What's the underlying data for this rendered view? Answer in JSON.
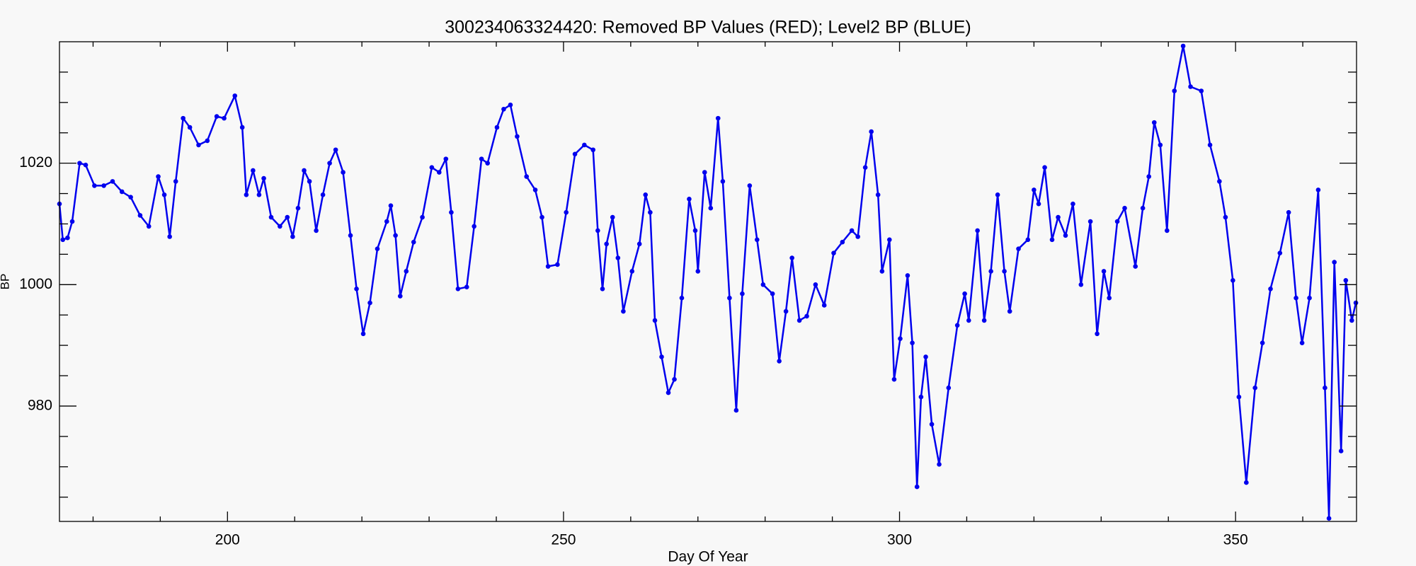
{
  "chart_data": {
    "type": "scatter",
    "title": "300234063324420: Removed BP Values (RED); Level2 BP (BLUE)",
    "x_label": "Day Of Year",
    "y_label": "BP",
    "xlim": [
      175,
      368
    ],
    "ylim": [
      961,
      1040
    ],
    "xticks": [
      200,
      250,
      300,
      350
    ],
    "yticks": [
      980,
      1000,
      1020
    ],
    "x_minor_ticks": [
      180,
      190,
      210,
      220,
      230,
      240,
      260,
      270,
      280,
      290,
      310,
      320,
      330,
      340,
      360
    ],
    "y_minor_ticks": [
      965,
      970,
      975,
      985,
      990,
      995,
      1005,
      1010,
      1015,
      1025,
      1030,
      1035
    ],
    "grid": false,
    "series": [
      {
        "name": "Level2 BP (BLUE)",
        "color": "#0000ee",
        "x": [
          175.0,
          175.5,
          176.2,
          176.9,
          178.0,
          178.9,
          180.2,
          181.6,
          182.9,
          184.3,
          185.6,
          187.0,
          188.3,
          189.7,
          190.6,
          191.4,
          192.3,
          193.4,
          194.4,
          195.7,
          197.0,
          198.4,
          199.5,
          201.1,
          202.2,
          202.8,
          203.8,
          204.7,
          205.4,
          206.5,
          207.8,
          208.9,
          209.7,
          210.5,
          211.4,
          212.2,
          213.2,
          214.2,
          215.2,
          216.1,
          217.2,
          218.3,
          219.2,
          220.2,
          221.2,
          222.3,
          223.7,
          224.3,
          225.0,
          225.7,
          226.6,
          227.7,
          229.0,
          230.4,
          231.5,
          232.5,
          233.3,
          234.3,
          235.6,
          236.7,
          237.8,
          238.7,
          240.1,
          241.1,
          242.1,
          243.1,
          244.5,
          245.8,
          246.8,
          247.7,
          249.1,
          250.4,
          251.7,
          253.1,
          254.4,
          255.1,
          255.8,
          256.4,
          257.3,
          258.1,
          258.9,
          260.2,
          261.3,
          262.2,
          262.9,
          263.6,
          264.6,
          265.6,
          266.5,
          267.6,
          268.7,
          269.6,
          270.0,
          271.0,
          271.9,
          273.0,
          273.7,
          274.7,
          275.7,
          276.6,
          277.7,
          278.8,
          279.7,
          281.1,
          282.1,
          283.1,
          284.0,
          285.1,
          286.2,
          287.5,
          288.8,
          290.2,
          291.5,
          292.9,
          293.8,
          294.9,
          295.8,
          296.8,
          297.4,
          298.5,
          299.2,
          300.1,
          301.2,
          301.9,
          302.6,
          303.2,
          303.9,
          304.8,
          305.9,
          307.3,
          308.6,
          309.7,
          310.3,
          311.6,
          312.6,
          313.6,
          314.6,
          315.6,
          316.4,
          317.7,
          319.1,
          320.0,
          320.7,
          321.6,
          322.7,
          323.6,
          324.7,
          325.8,
          327.0,
          328.4,
          329.4,
          330.4,
          331.2,
          332.4,
          333.5,
          335.1,
          336.2,
          337.1,
          337.9,
          338.8,
          339.8,
          340.9,
          342.2,
          343.3,
          344.9,
          346.2,
          347.6,
          348.5,
          349.6,
          350.5,
          351.6,
          352.9,
          354.0,
          355.2,
          356.6,
          357.9,
          359.0,
          359.9,
          361.0,
          362.3,
          363.3,
          363.9,
          364.7,
          365.7,
          366.4,
          367.3,
          367.9
        ],
        "values": [
          1013.3,
          1007.4,
          1007.7,
          1010.4,
          1020,
          1019.7,
          1016.3,
          1016.3,
          1017,
          1015.3,
          1014.4,
          1011.4,
          1009.6,
          1017.8,
          1014.8,
          1007.9,
          1017,
          1027.4,
          1025.9,
          1023,
          1023.7,
          1027.7,
          1027.4,
          1031.1,
          1025.9,
          1014.8,
          1018.8,
          1014.8,
          1017.5,
          1011.1,
          1009.6,
          1011.1,
          1007.9,
          1012.6,
          1018.8,
          1017,
          1008.9,
          1014.8,
          1020,
          1022.2,
          1018.5,
          1008.1,
          999.3,
          991.9,
          997,
          1005.9,
          1010.4,
          1013,
          1008.1,
          998.1,
          1002.2,
          1007,
          1011.1,
          1019.3,
          1018.5,
          1020.7,
          1011.9,
          999.3,
          999.6,
          1009.6,
          1020.7,
          1020,
          1025.9,
          1028.9,
          1029.6,
          1024.4,
          1017.8,
          1015.6,
          1011.1,
          1003,
          1003.3,
          1011.9,
          1021.5,
          1023,
          1022.2,
          1008.9,
          999.3,
          1006.7,
          1011.1,
          1004.4,
          995.6,
          1002.2,
          1006.7,
          1014.8,
          1011.9,
          994.1,
          988.1,
          982.2,
          984.4,
          997.8,
          1014.1,
          1008.9,
          1002.2,
          1018.5,
          1012.6,
          1027.4,
          1017,
          997.8,
          979.3,
          998.5,
          1016.3,
          1007.4,
          1000,
          998.5,
          987.4,
          995.6,
          1004.4,
          994.1,
          994.8,
          1000,
          996.6,
          1005.2,
          1007,
          1008.9,
          1007.9,
          1019.3,
          1025.2,
          1014.8,
          1002.2,
          1007.4,
          984.4,
          991.1,
          1001.5,
          990.4,
          966.7,
          981.5,
          988.1,
          977,
          970.4,
          983,
          993.3,
          998.5,
          994.1,
          1008.9,
          994.1,
          1002.2,
          1014.8,
          1002.2,
          995.6,
          1005.9,
          1007.4,
          1015.6,
          1013.3,
          1019.3,
          1007.4,
          1011.1,
          1008.1,
          1013.3,
          1000,
          1010.4,
          991.9,
          1002.2,
          997.8,
          1010.4,
          1012.6,
          1003,
          1012.6,
          1017.8,
          1026.7,
          1023,
          1008.9,
          1031.9,
          1039.3,
          1032.6,
          1031.9,
          1023,
          1017,
          1011.1,
          1000.7,
          981.5,
          967.4,
          983,
          990.4,
          999.3,
          1005.2,
          1011.9,
          997.8,
          990.4,
          997.8,
          1015.6,
          983,
          961.5,
          1003.7,
          972.6,
          1000.7,
          994.1,
          997
        ]
      }
    ]
  }
}
